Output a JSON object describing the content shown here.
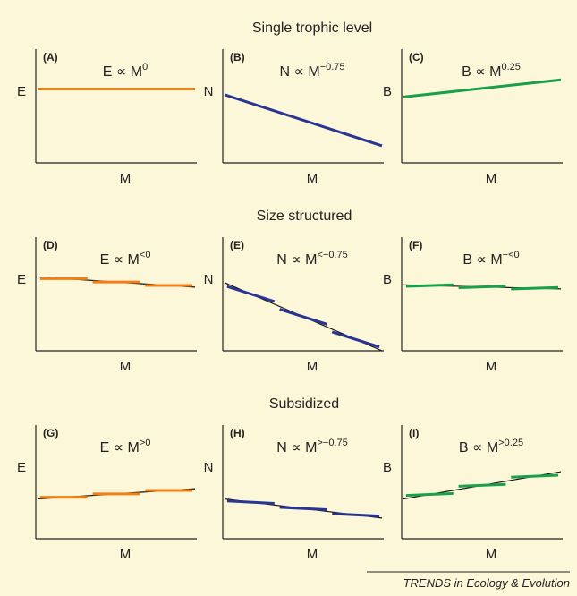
{
  "section_titles": [
    "Single trophic level",
    "Size structured",
    "Subsidized"
  ],
  "credit": "TRENDS in Ecology & Evolution",
  "colors": {
    "E": "#f07f17",
    "N": "#2a3593",
    "B": "#1aa04a",
    "fit": "#111111",
    "background": "#fdf7d9"
  },
  "panels": [
    {
      "label": "(A)",
      "ylabel": "E",
      "xlabel": "M",
      "formula": "E ∝ M",
      "exponent": "0",
      "series": "E",
      "type": "single",
      "slope": 0
    },
    {
      "label": "(B)",
      "ylabel": "N",
      "xlabel": "M",
      "formula": "N ∝ M",
      "exponent": "−0.75",
      "series": "N",
      "type": "single",
      "slope": -0.75
    },
    {
      "label": "(C)",
      "ylabel": "B",
      "xlabel": "M",
      "formula": "B ∝ M",
      "exponent": "0.25",
      "series": "B",
      "type": "single",
      "slope": 0.25
    },
    {
      "label": "(D)",
      "ylabel": "E",
      "xlabel": "M",
      "formula": "E ∝ M",
      "exponent": "<0",
      "series": "E",
      "type": "structured",
      "slope": -0.15,
      "segment_slope": 0
    },
    {
      "label": "(E)",
      "ylabel": "N",
      "xlabel": "M",
      "formula": "N ∝ M",
      "exponent": "<−0.75",
      "series": "N",
      "type": "structured",
      "slope": -1.0,
      "segment_slope": -0.75
    },
    {
      "label": "(F)",
      "ylabel": "B",
      "xlabel": "M",
      "formula": "B ∝ M",
      "exponent": "−<0",
      "series": "B",
      "type": "structured",
      "slope": -0.06,
      "segment_slope": 0.08
    },
    {
      "label": "(G)",
      "ylabel": "E",
      "xlabel": "M",
      "formula": "E ∝ M",
      "exponent": ">0",
      "series": "E",
      "type": "subsidized",
      "slope": 0.15,
      "segment_slope": 0
    },
    {
      "label": "(H)",
      "ylabel": "N",
      "xlabel": "M",
      "formula": "N ∝ M",
      "exponent": ">−0.75",
      "series": "N",
      "type": "subsidized",
      "slope": -0.28,
      "segment_slope": -0.12
    },
    {
      "label": "(I)",
      "ylabel": "B",
      "xlabel": "M",
      "formula": "B ∝ M",
      "exponent": ">0.25",
      "series": "B",
      "type": "subsidized",
      "slope": 0.4,
      "segment_slope": 0.1
    }
  ]
}
